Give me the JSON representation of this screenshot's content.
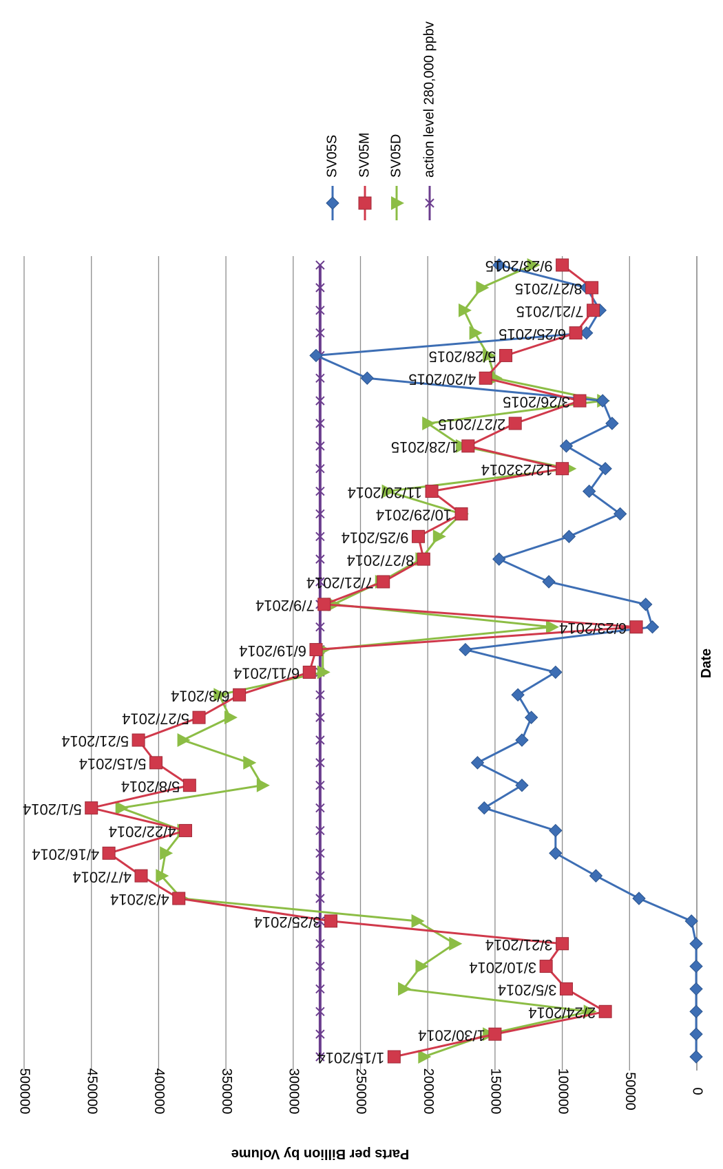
{
  "chart_data": {
    "type": "line",
    "orientation": "rotated-180-vertical",
    "xlabel": "Date",
    "ylabel": "Parts per Billion by Volume",
    "ylim": [
      0,
      500000
    ],
    "yticks": [
      "0",
      "50000",
      "100000",
      "150000",
      "200000",
      "250000",
      "300000",
      "350000",
      "400000",
      "450000",
      "500000"
    ],
    "grid": true,
    "legend_position": "right",
    "categories": [
      "1/15/2014",
      "1/30/2014",
      "2/24/2014",
      "3/5/2014",
      "3/10/2014",
      "3/21/2014",
      "3/25/2014",
      "4/3/2014",
      "4/7/2014",
      "4/16/2014",
      "4/22/2014",
      "5/1/2014",
      "5/8/2014",
      "5/15/2014",
      "5/21/2014",
      "5/27/2014",
      "6/3/2014",
      "6/11/2014",
      "6/19/2014",
      "6/23/2014",
      "7/9/2014",
      "7/21/2014",
      "8/27/2014",
      "9/25/2014",
      "10/29/2014",
      "11/20/2014",
      "12/23/2014",
      "1/28/2015",
      "2/27/2015",
      "3/26/2015",
      "4/20/2015",
      "5/28/2015",
      "6/25/2015",
      "7/21/2015",
      "8/27/2015",
      "9/23/2015"
    ],
    "date_labels": [
      "1/15/2014",
      "1/30/2014",
      "2/24/2014",
      "3/5/2014",
      "3/10/2014",
      "3/21/2014",
      "3/25/2014",
      "4/3/2014",
      "4/7/2014",
      "4/16/2014",
      "4/22/2014",
      "5/1/2014",
      "5/8/2014",
      "5/15/2014",
      "5/21/2014",
      "5/27/2014",
      "6/3/2014",
      "6/11/2014",
      "6/19/2014",
      "6/23/2014",
      "7/9/2014",
      "7/21/2014",
      "8/27/2014",
      "9/25/2014",
      "10/29/2014",
      "11/20/2014",
      "12/232014",
      "1/28/2015",
      "2/27/2015",
      "3/26/2015",
      "4/20/2015",
      "5/28/2015",
      "6/25/2015",
      "7/21/2015",
      "8/27/2015",
      "9/23/2015"
    ],
    "series": [
      {
        "name": "SV05S",
        "color": "#3d6eb4",
        "marker": "diamond",
        "values": [
          500,
          500,
          500,
          500,
          500,
          500,
          4000,
          43000,
          75000,
          105000,
          105000,
          158000,
          130000,
          163000,
          130000,
          123000,
          133000,
          105000,
          172000,
          33000,
          38000,
          110000,
          147000,
          95000,
          57000,
          80000,
          68000,
          97000,
          63000,
          70000,
          245000,
          283000,
          82000,
          72000,
          82000,
          147000
        ]
      },
      {
        "name": "SV05M",
        "color": "#d0394b",
        "marker": "square",
        "values": [
          225000,
          150000,
          68000,
          97000,
          112000,
          100000,
          272000,
          385000,
          413000,
          437000,
          380000,
          450000,
          377000,
          402000,
          415000,
          370000,
          340000,
          288000,
          283000,
          45000,
          277000,
          233000,
          203000,
          207000,
          175000,
          197000,
          100000,
          170000,
          135000,
          87000,
          157000,
          142000,
          90000,
          77000,
          78000,
          100000
        ]
      },
      {
        "name": "SV05D",
        "color": "#8cbd45",
        "marker": "triangle",
        "values": [
          203000,
          155000,
          80000,
          218000,
          205000,
          180000,
          208000,
          383000,
          398000,
          395000,
          382000,
          428000,
          323000,
          333000,
          382000,
          347000,
          355000,
          278000,
          278000,
          108000,
          270000,
          235000,
          205000,
          192000,
          175000,
          230000,
          95000,
          175000,
          200000,
          70000,
          150000,
          155000,
          165000,
          173000,
          160000,
          122000
        ]
      },
      {
        "name": "action level 280,000 ppbv",
        "color": "#6b3d8e",
        "marker": "x",
        "values": [
          280000,
          280000,
          280000,
          280000,
          280000,
          280000,
          280000,
          280000,
          280000,
          280000,
          280000,
          280000,
          280000,
          280000,
          280000,
          280000,
          280000,
          280000,
          280000,
          280000,
          280000,
          280000,
          280000,
          280000,
          280000,
          280000,
          280000,
          280000,
          280000,
          280000,
          280000,
          280000,
          280000,
          280000,
          280000,
          280000
        ]
      }
    ]
  }
}
